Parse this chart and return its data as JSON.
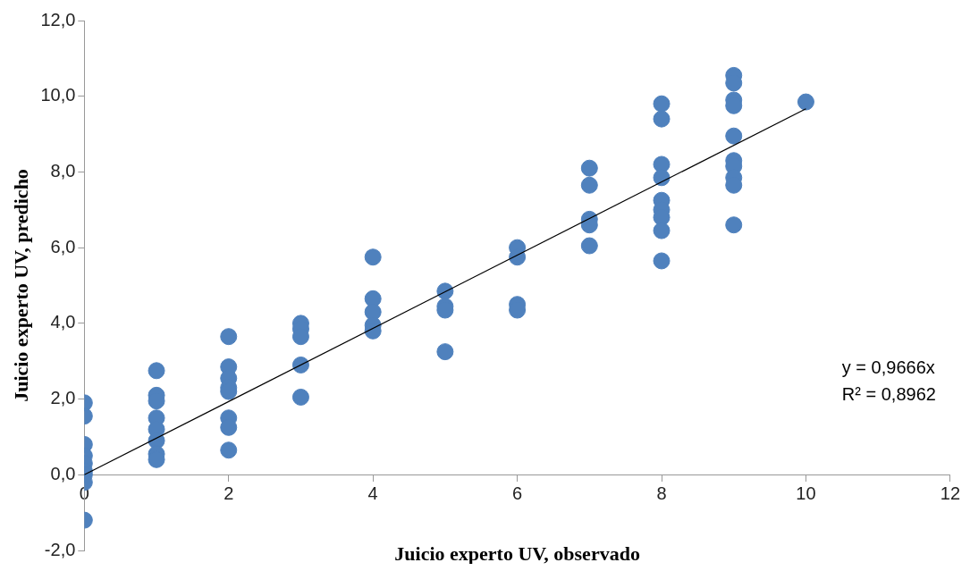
{
  "chart_data": {
    "type": "scatter",
    "xlabel": "Juicio experto UV, observado",
    "ylabel": "Juicio experto UV, predicho",
    "xlim": [
      0,
      12
    ],
    "xticks": [
      0,
      2,
      4,
      6,
      8,
      10,
      12
    ],
    "ylim": [
      -2,
      12
    ],
    "yticks": [
      {
        "value": -2,
        "label": "-2,0"
      },
      {
        "value": 0,
        "label": "0,0"
      },
      {
        "value": 2,
        "label": "2,0"
      },
      {
        "value": 4,
        "label": "4,0"
      },
      {
        "value": 6,
        "label": "6,0"
      },
      {
        "value": 8,
        "label": "8,0"
      },
      {
        "value": 10,
        "label": "10,0"
      },
      {
        "value": 12,
        "label": "12,0"
      }
    ],
    "grid": false,
    "legend": false,
    "series": [
      {
        "marker": "circle",
        "color": "#4f81bd",
        "x": [
          0,
          0,
          0,
          0,
          0,
          0,
          0,
          0,
          0,
          1,
          1,
          1,
          1,
          1,
          1,
          1,
          1,
          2,
          2,
          2,
          2,
          2,
          2,
          2,
          2,
          3,
          3,
          3,
          3,
          3,
          4,
          4,
          4,
          4,
          4,
          5,
          5,
          5,
          5,
          6,
          6,
          6,
          6,
          7,
          7,
          7,
          7,
          7,
          8,
          8,
          8,
          8,
          8,
          8,
          8,
          8,
          8,
          9,
          9,
          9,
          9,
          9,
          9,
          9,
          9,
          9,
          9,
          10
        ],
        "values": [
          1.9,
          1.55,
          0.8,
          0.5,
          0.3,
          0.1,
          0,
          -0.2,
          -1.2,
          2.75,
          2.1,
          1.95,
          1.5,
          1.2,
          0.9,
          0.55,
          0.4,
          3.65,
          2.85,
          2.55,
          2.3,
          2.2,
          1.5,
          1.25,
          0.65,
          4.0,
          3.85,
          3.65,
          2.9,
          2.05,
          5.75,
          4.65,
          4.3,
          3.95,
          3.8,
          4.85,
          4.45,
          4.35,
          3.25,
          6.0,
          5.75,
          4.5,
          4.35,
          8.1,
          7.65,
          6.75,
          6.6,
          6.05,
          9.8,
          9.4,
          8.2,
          7.85,
          7.25,
          7.0,
          6.8,
          6.45,
          5.65,
          10.55,
          10.35,
          9.9,
          9.75,
          8.95,
          8.3,
          8.15,
          7.85,
          7.65,
          6.6,
          9.85
        ]
      },
      {
        "type": "line",
        "color": "#000000",
        "x": [
          0,
          10
        ],
        "values": [
          0,
          9.67
        ]
      }
    ],
    "annotations": [
      "y = 0,9666x",
      "R² = 0,8962"
    ]
  }
}
